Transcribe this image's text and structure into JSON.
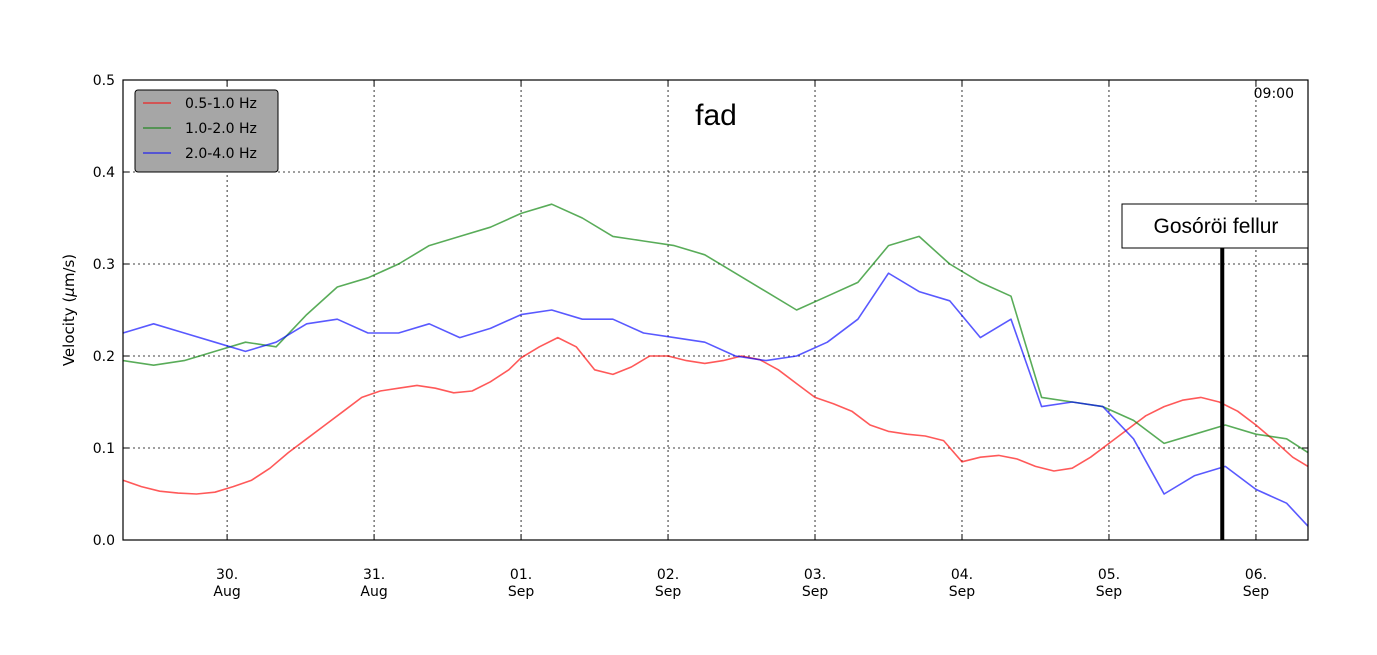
{
  "chart_data": {
    "type": "line",
    "title": "fad",
    "corner_label": "09:00",
    "ylabel": "Velocity (µm/s)",
    "ylabel_parts": {
      "prefix": "Velocity (",
      "unit_mu": "µ",
      "unit_rest": "m/s",
      "suffix": ")"
    },
    "ylim": [
      0.0,
      0.5
    ],
    "yticks": [
      0.0,
      0.1,
      0.2,
      0.3,
      0.4,
      0.5
    ],
    "ytick_labels": [
      "0.0",
      "0.1",
      "0.2",
      "0.3",
      "0.4",
      "0.5"
    ],
    "xlim": [
      "2024-08-29T07:00",
      "2024-09-06T08:30"
    ],
    "xticks": [
      {
        "value": "2024-08-30T00:00",
        "day": "30.",
        "month": "Aug"
      },
      {
        "value": "2024-08-31T00:00",
        "day": "31.",
        "month": "Aug"
      },
      {
        "value": "2024-09-01T00:00",
        "day": "01.",
        "month": "Sep"
      },
      {
        "value": "2024-09-02T00:00",
        "day": "02.",
        "month": "Sep"
      },
      {
        "value": "2024-09-03T00:00",
        "day": "03.",
        "month": "Sep"
      },
      {
        "value": "2024-09-04T00:00",
        "day": "04.",
        "month": "Sep"
      },
      {
        "value": "2024-09-05T00:00",
        "day": "05.",
        "month": "Sep"
      },
      {
        "value": "2024-09-06T00:00",
        "day": "06.",
        "month": "Sep"
      }
    ],
    "grid": true,
    "legend_position": "top-left",
    "annotation": {
      "text": "Gosóröi fellur",
      "x": "2024-09-05T18:30"
    },
    "series": [
      {
        "name": "0.5-1.0 Hz",
        "color": "#ff0000",
        "x": [
          "2024-08-29T07:00",
          "2024-08-29T10:00",
          "2024-08-29T13:00",
          "2024-08-29T16:00",
          "2024-08-29T19:00",
          "2024-08-29T22:00",
          "2024-08-30T01:00",
          "2024-08-30T04:00",
          "2024-08-30T07:00",
          "2024-08-30T10:00",
          "2024-08-30T13:00",
          "2024-08-30T16:00",
          "2024-08-30T19:00",
          "2024-08-30T22:00",
          "2024-08-31T01:00",
          "2024-08-31T04:00",
          "2024-08-31T07:00",
          "2024-08-31T10:00",
          "2024-08-31T13:00",
          "2024-08-31T16:00",
          "2024-08-31T19:00",
          "2024-08-31T22:00",
          "2024-09-01T00:00",
          "2024-09-01T03:00",
          "2024-09-01T06:00",
          "2024-09-01T09:00",
          "2024-09-01T12:00",
          "2024-09-01T15:00",
          "2024-09-01T18:00",
          "2024-09-01T21:00",
          "2024-09-02T00:00",
          "2024-09-02T03:00",
          "2024-09-02T06:00",
          "2024-09-02T09:00",
          "2024-09-02T12:00",
          "2024-09-02T15:00",
          "2024-09-02T18:00",
          "2024-09-02T21:00",
          "2024-09-03T00:00",
          "2024-09-03T03:00",
          "2024-09-03T06:00",
          "2024-09-03T09:00",
          "2024-09-03T12:00",
          "2024-09-03T15:00",
          "2024-09-03T18:00",
          "2024-09-03T21:00",
          "2024-09-04T00:00",
          "2024-09-04T03:00",
          "2024-09-04T06:00",
          "2024-09-04T09:00",
          "2024-09-04T12:00",
          "2024-09-04T15:00",
          "2024-09-04T18:00",
          "2024-09-04T21:00",
          "2024-09-05T00:00",
          "2024-09-05T03:00",
          "2024-09-05T06:00",
          "2024-09-05T09:00",
          "2024-09-05T12:00",
          "2024-09-05T15:00",
          "2024-09-05T18:00",
          "2024-09-05T21:00",
          "2024-09-06T00:00",
          "2024-09-06T03:00",
          "2024-09-06T06:00",
          "2024-09-06T08:30"
        ],
        "y": [
          0.065,
          0.058,
          0.053,
          0.051,
          0.05,
          0.052,
          0.058,
          0.065,
          0.078,
          0.095,
          0.11,
          0.125,
          0.14,
          0.155,
          0.162,
          0.165,
          0.168,
          0.165,
          0.16,
          0.162,
          0.172,
          0.185,
          0.198,
          0.21,
          0.22,
          0.21,
          0.185,
          0.18,
          0.188,
          0.2,
          0.2,
          0.195,
          0.192,
          0.195,
          0.2,
          0.196,
          0.185,
          0.17,
          0.155,
          0.148,
          0.14,
          0.125,
          0.118,
          0.115,
          0.113,
          0.108,
          0.085,
          0.09,
          0.092,
          0.088,
          0.08,
          0.075,
          0.078,
          0.09,
          0.105,
          0.12,
          0.135,
          0.145,
          0.152,
          0.155,
          0.15,
          0.14,
          0.125,
          0.108,
          0.09,
          0.08
        ]
      },
      {
        "name": "1.0-2.0 Hz",
        "color": "#008000",
        "x": [
          "2024-08-29T07:00",
          "2024-08-29T12:00",
          "2024-08-29T17:00",
          "2024-08-29T22:00",
          "2024-08-30T03:00",
          "2024-08-30T08:00",
          "2024-08-30T13:00",
          "2024-08-30T18:00",
          "2024-08-30T23:00",
          "2024-08-31T04:00",
          "2024-08-31T09:00",
          "2024-08-31T14:00",
          "2024-08-31T19:00",
          "2024-09-01T00:00",
          "2024-09-01T05:00",
          "2024-09-01T10:00",
          "2024-09-01T15:00",
          "2024-09-01T20:00",
          "2024-09-02T01:00",
          "2024-09-02T06:00",
          "2024-09-02T11:00",
          "2024-09-02T16:00",
          "2024-09-02T21:00",
          "2024-09-03T02:00",
          "2024-09-03T07:00",
          "2024-09-03T12:00",
          "2024-09-03T17:00",
          "2024-09-03T22:00",
          "2024-09-04T03:00",
          "2024-09-04T08:00",
          "2024-09-04T13:00",
          "2024-09-04T18:00",
          "2024-09-04T23:00",
          "2024-09-05T04:00",
          "2024-09-05T09:00",
          "2024-09-05T14:00",
          "2024-09-05T19:00",
          "2024-09-06T00:00",
          "2024-09-06T05:00",
          "2024-09-06T08:30"
        ],
        "y": [
          0.195,
          0.19,
          0.195,
          0.205,
          0.215,
          0.21,
          0.245,
          0.275,
          0.285,
          0.3,
          0.32,
          0.33,
          0.34,
          0.355,
          0.365,
          0.35,
          0.33,
          0.325,
          0.32,
          0.31,
          0.29,
          0.27,
          0.25,
          0.265,
          0.28,
          0.32,
          0.33,
          0.3,
          0.28,
          0.265,
          0.155,
          0.15,
          0.145,
          0.13,
          0.105,
          0.115,
          0.125,
          0.115,
          0.11,
          0.095
        ]
      },
      {
        "name": "2.0-4.0 Hz",
        "color": "#0000ff",
        "x": [
          "2024-08-29T07:00",
          "2024-08-29T12:00",
          "2024-08-29T17:00",
          "2024-08-29T22:00",
          "2024-08-30T03:00",
          "2024-08-30T08:00",
          "2024-08-30T13:00",
          "2024-08-30T18:00",
          "2024-08-30T23:00",
          "2024-08-31T04:00",
          "2024-08-31T09:00",
          "2024-08-31T14:00",
          "2024-08-31T19:00",
          "2024-09-01T00:00",
          "2024-09-01T05:00",
          "2024-09-01T10:00",
          "2024-09-01T15:00",
          "2024-09-01T20:00",
          "2024-09-02T01:00",
          "2024-09-02T06:00",
          "2024-09-02T11:00",
          "2024-09-02T16:00",
          "2024-09-02T21:00",
          "2024-09-03T02:00",
          "2024-09-03T07:00",
          "2024-09-03T12:00",
          "2024-09-03T17:00",
          "2024-09-03T22:00",
          "2024-09-04T03:00",
          "2024-09-04T08:00",
          "2024-09-04T13:00",
          "2024-09-04T18:00",
          "2024-09-04T23:00",
          "2024-09-05T04:00",
          "2024-09-05T09:00",
          "2024-09-05T14:00",
          "2024-09-05T19:00",
          "2024-09-06T00:00",
          "2024-09-06T05:00",
          "2024-09-06T08:30"
        ],
        "y": [
          0.225,
          0.235,
          0.225,
          0.215,
          0.205,
          0.215,
          0.235,
          0.24,
          0.225,
          0.225,
          0.235,
          0.22,
          0.23,
          0.245,
          0.25,
          0.24,
          0.24,
          0.225,
          0.22,
          0.215,
          0.2,
          0.195,
          0.2,
          0.215,
          0.24,
          0.29,
          0.27,
          0.26,
          0.22,
          0.24,
          0.145,
          0.15,
          0.145,
          0.11,
          0.05,
          0.07,
          0.08,
          0.055,
          0.04,
          0.015
        ]
      }
    ]
  }
}
